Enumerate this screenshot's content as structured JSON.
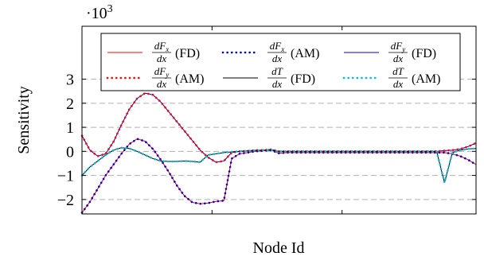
{
  "chart_data": {
    "type": "line",
    "ylabel": "Sensitivity",
    "xlabel": "Node Id",
    "y_multiplier_label": "·10",
    "y_multiplier_exponent": "3",
    "ylim": [
      -2.6,
      5.2
    ],
    "xlim": [
      0,
      100
    ],
    "y_ticks": [
      -2,
      -1,
      0,
      1,
      2,
      3
    ],
    "y_tick_labels": [
      "−2",
      "−1",
      "0",
      "1",
      "2",
      "3"
    ],
    "x_ticks": [
      0,
      33,
      66,
      100
    ],
    "grid": "horizontal dashed at y ticks",
    "legend_position": "top",
    "legend": [
      {
        "series_index": 0,
        "num": "dF",
        "num_sub": "x",
        "den": "dx",
        "suffix": "(FD)"
      },
      {
        "series_index": 1,
        "num": "dF",
        "num_sub": "x",
        "den": "dx",
        "suffix": "(AM)"
      },
      {
        "series_index": 2,
        "num": "dF",
        "num_sub": "y",
        "den": "dx",
        "suffix": "(FD)"
      },
      {
        "series_index": 3,
        "num": "dF",
        "num_sub": "y",
        "den": "dx",
        "suffix": "(AM)"
      },
      {
        "series_index": 4,
        "num": "dT",
        "num_sub": "",
        "den": "dx",
        "suffix": "(FD)"
      },
      {
        "series_index": 5,
        "num": "dT",
        "num_sub": "",
        "den": "dx",
        "suffix": "(AM)"
      }
    ],
    "x": [
      0,
      2,
      4,
      6,
      8,
      10,
      12,
      14,
      16,
      18,
      20,
      22,
      24,
      26,
      28,
      30,
      32,
      34,
      36,
      38,
      40,
      42,
      44,
      46,
      48,
      50,
      52,
      54,
      56,
      58,
      60,
      62,
      64,
      66,
      68,
      70,
      72,
      74,
      76,
      78,
      80,
      82,
      84,
      86,
      88,
      90,
      92,
      94,
      96,
      98,
      100
    ],
    "series": [
      {
        "color": "#ff0000",
        "style": "solid",
        "width": 1,
        "values": [
          -2.55,
          -2.1,
          -1.55,
          -1.0,
          -0.55,
          -0.1,
          0.3,
          0.52,
          0.42,
          0.1,
          -0.35,
          -0.85,
          -1.4,
          -1.85,
          -2.12,
          -2.18,
          -2.15,
          -2.08,
          -2.05,
          -0.3,
          -0.1,
          -0.05,
          0.0,
          0.02,
          0.05,
          -0.08,
          -0.05,
          -0.05,
          -0.05,
          -0.05,
          -0.05,
          -0.05,
          -0.05,
          -0.05,
          -0.05,
          -0.05,
          -0.05,
          -0.05,
          -0.05,
          -0.05,
          -0.05,
          -0.05,
          -0.05,
          -0.05,
          -0.05,
          -0.05,
          -0.05,
          -0.1,
          -0.2,
          -0.35,
          -0.55
        ]
      },
      {
        "color": "#0000cc",
        "style": "dotted",
        "width": 2.6,
        "values": [
          -2.55,
          -2.1,
          -1.55,
          -1.0,
          -0.55,
          -0.1,
          0.3,
          0.52,
          0.42,
          0.1,
          -0.35,
          -0.85,
          -1.4,
          -1.85,
          -2.12,
          -2.18,
          -2.15,
          -2.08,
          -2.05,
          -0.3,
          -0.1,
          -0.05,
          0.0,
          0.02,
          0.05,
          -0.08,
          -0.05,
          -0.05,
          -0.05,
          -0.05,
          -0.05,
          -0.05,
          -0.05,
          -0.05,
          -0.05,
          -0.05,
          -0.05,
          -0.05,
          -0.05,
          -0.05,
          -0.05,
          -0.05,
          -0.05,
          -0.05,
          -0.05,
          -0.05,
          -0.05,
          -0.1,
          -0.2,
          -0.35,
          -0.55
        ]
      },
      {
        "color": "#0000cc",
        "style": "solid",
        "width": 1,
        "values": [
          0.65,
          0.05,
          -0.2,
          -0.1,
          0.4,
          1.1,
          1.75,
          2.2,
          2.42,
          2.35,
          2.05,
          1.65,
          1.25,
          0.85,
          0.45,
          0.05,
          -0.25,
          -0.45,
          -0.4,
          -0.05,
          0.0,
          0.02,
          0.05,
          0.05,
          0.08,
          0.0,
          0.0,
          0.0,
          0.0,
          0.0,
          0.0,
          0.0,
          0.0,
          0.0,
          0.0,
          0.0,
          0.0,
          0.0,
          0.0,
          0.0,
          0.0,
          0.0,
          0.0,
          0.0,
          0.0,
          0.0,
          0.03,
          0.05,
          0.1,
          0.2,
          0.35
        ]
      },
      {
        "color": "#ff0000",
        "style": "dotted",
        "width": 2.6,
        "values": [
          0.65,
          0.05,
          -0.2,
          -0.1,
          0.4,
          1.1,
          1.75,
          2.2,
          2.42,
          2.35,
          2.05,
          1.65,
          1.25,
          0.85,
          0.45,
          0.05,
          -0.25,
          -0.45,
          -0.4,
          -0.05,
          0.0,
          0.02,
          0.05,
          0.05,
          0.08,
          0.0,
          0.0,
          0.0,
          0.0,
          0.0,
          0.0,
          0.0,
          0.0,
          0.0,
          0.0,
          0.0,
          0.0,
          0.0,
          0.0,
          0.0,
          0.0,
          0.0,
          0.0,
          0.0,
          0.0,
          0.0,
          0.03,
          0.05,
          0.1,
          0.2,
          0.35
        ]
      },
      {
        "color": "#000000",
        "style": "solid",
        "width": 1,
        "values": [
          -1.0,
          -0.65,
          -0.4,
          -0.15,
          0.05,
          0.15,
          0.12,
          0.0,
          -0.15,
          -0.3,
          -0.4,
          -0.42,
          -0.42,
          -0.4,
          -0.42,
          -0.45,
          -0.15,
          -0.1,
          -0.05,
          -0.02,
          0.0,
          0.02,
          0.03,
          0.05,
          0.05,
          0.0,
          0.0,
          0.0,
          0.0,
          0.0,
          0.0,
          0.0,
          0.0,
          0.0,
          0.0,
          0.0,
          0.0,
          0.0,
          0.0,
          0.0,
          0.0,
          0.0,
          0.0,
          0.0,
          0.0,
          0.0,
          -1.3,
          -0.05,
          0.05,
          0.1,
          0.12
        ]
      },
      {
        "color": "#00bcd4",
        "style": "dotted",
        "width": 2.6,
        "values": [
          -1.0,
          -0.65,
          -0.4,
          -0.15,
          0.05,
          0.15,
          0.12,
          0.0,
          -0.15,
          -0.3,
          -0.4,
          -0.42,
          -0.42,
          -0.4,
          -0.42,
          -0.45,
          -0.15,
          -0.1,
          -0.05,
          -0.02,
          0.0,
          0.02,
          0.03,
          0.05,
          0.05,
          0.0,
          0.0,
          0.0,
          0.0,
          0.0,
          0.0,
          0.0,
          0.0,
          0.0,
          0.0,
          0.0,
          0.0,
          0.0,
          0.0,
          0.0,
          0.0,
          0.0,
          0.0,
          0.0,
          0.0,
          0.0,
          -1.3,
          -0.05,
          0.05,
          0.1,
          0.12
        ]
      }
    ]
  }
}
